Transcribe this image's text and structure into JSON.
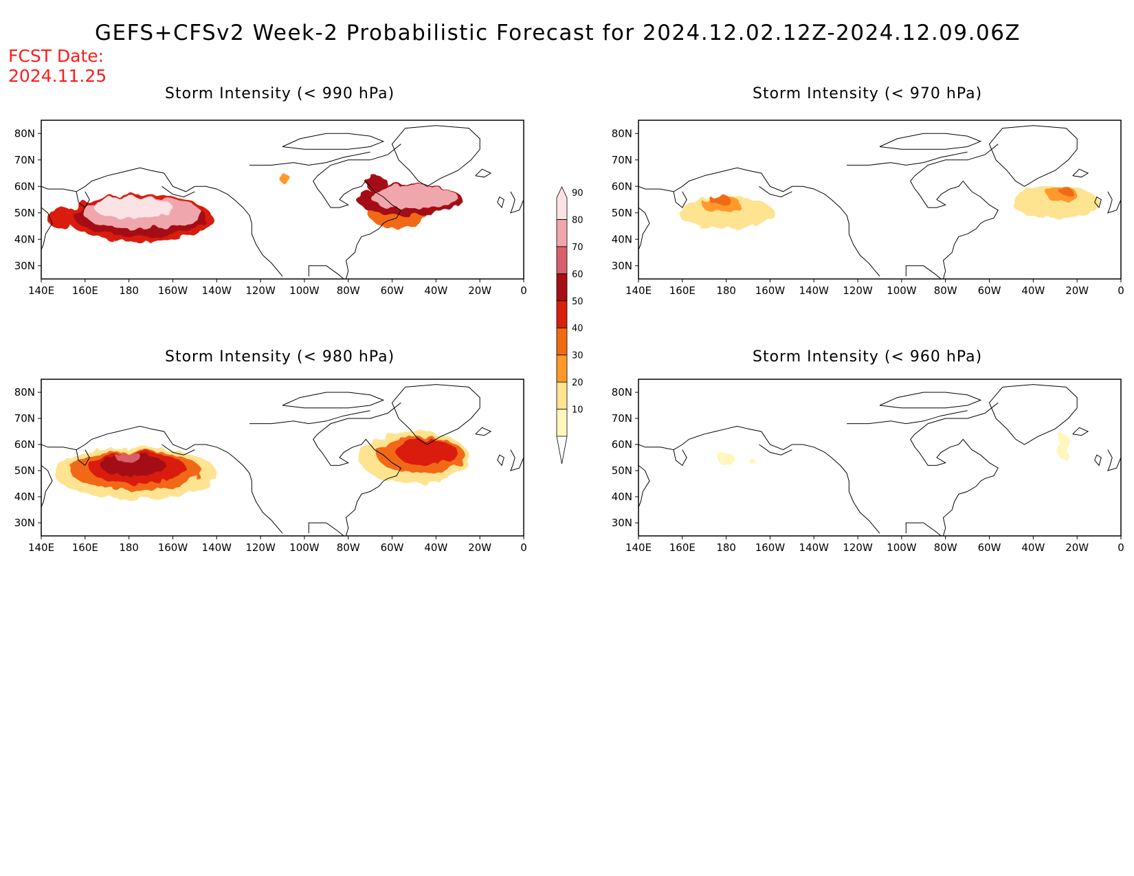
{
  "title": "GEFS+CFSv2 Week-2 Probabilistic Forecast for 2024.12.02.12Z-2024.12.09.06Z",
  "fcst_date": {
    "label": "FCST Date:",
    "value": "2024.11.25"
  },
  "lon_labels": [
    "140E",
    "160E",
    "180",
    "160W",
    "140W",
    "120W",
    "100W",
    "80W",
    "60W",
    "40W",
    "20W",
    "0"
  ],
  "lat_labels": [
    "80N",
    "70N",
    "60N",
    "50N",
    "40N",
    "30N"
  ],
  "colorbar": {
    "levels": [
      10,
      20,
      30,
      40,
      50,
      60,
      70,
      80,
      90
    ],
    "labels": [
      "10",
      "20",
      "30",
      "40",
      "50",
      "60",
      "70",
      "80",
      "90"
    ],
    "colors": [
      "#fff7bc",
      "#fee391",
      "#fe9929",
      "#f16913",
      "#d91e0a",
      "#a50f15",
      "#d8606b",
      "#f0a6ad",
      "#fbe2e5"
    ]
  },
  "panels": [
    {
      "id": "p990",
      "title": "Storm Intensity (< 990 hPa)",
      "blobs": [
        {
          "lon": 185,
          "lat": 48,
          "rlon": 33,
          "rlat": 9,
          "level": 4
        },
        {
          "lon": 185,
          "lat": 48.5,
          "rlon": 30,
          "rlat": 7.5,
          "level": 5
        },
        {
          "lon": 186,
          "lat": 50,
          "rlon": 27,
          "rlat": 6,
          "level": 7
        },
        {
          "lon": 182,
          "lat": 52,
          "rlon": 18,
          "rlat": 4,
          "level": 8
        },
        {
          "lon": 149,
          "lat": 48,
          "rlon": 6,
          "rlat": 4,
          "level": 4
        },
        {
          "lon": 302,
          "lat": 52,
          "rlon": 14,
          "rlat": 8,
          "level": 3
        },
        {
          "lon": 308,
          "lat": 55,
          "rlon": 24,
          "rlat": 6,
          "level": 5
        },
        {
          "lon": 310,
          "lat": 56,
          "rlon": 20,
          "rlat": 4.5,
          "level": 7
        },
        {
          "lon": 293,
          "lat": 61,
          "rlon": 5,
          "rlat": 3,
          "level": 5
        },
        {
          "lon": 251,
          "lat": 63,
          "rlon": 2,
          "rlat": 2,
          "level": 2
        }
      ]
    },
    {
      "id": "p970",
      "title": "Storm Intensity (< 970 hPa)",
      "blobs": [
        {
          "lon": 180,
          "lat": 50,
          "rlon": 22,
          "rlat": 6,
          "level": 1
        },
        {
          "lon": 178,
          "lat": 53,
          "rlon": 9,
          "rlat": 3,
          "level": 2
        },
        {
          "lon": 177,
          "lat": 55,
          "rlon": 5,
          "rlat": 1.8,
          "level": 3
        },
        {
          "lon": 330,
          "lat": 54,
          "rlon": 20,
          "rlat": 6,
          "level": 1
        },
        {
          "lon": 333,
          "lat": 57,
          "rlon": 7,
          "rlat": 3,
          "level": 2
        },
        {
          "lon": 335,
          "lat": 58,
          "rlon": 3,
          "rlat": 1.5,
          "level": 3
        }
      ]
    },
    {
      "id": "p980",
      "title": "Storm Intensity (< 980 hPa)",
      "blobs": [
        {
          "lon": 183,
          "lat": 49,
          "rlon": 37,
          "rlat": 10,
          "level": 1
        },
        {
          "lon": 183,
          "lat": 50,
          "rlon": 30,
          "rlat": 7.5,
          "level": 3
        },
        {
          "lon": 184,
          "lat": 51,
          "rlon": 22,
          "rlat": 6,
          "level": 4
        },
        {
          "lon": 182,
          "lat": 52,
          "rlon": 15,
          "rlat": 4,
          "level": 5
        },
        {
          "lon": 180,
          "lat": 55,
          "rlon": 6,
          "rlat": 2,
          "level": 6
        },
        {
          "lon": 310,
          "lat": 55,
          "rlon": 25,
          "rlat": 10,
          "level": 1
        },
        {
          "lon": 313,
          "lat": 56,
          "rlon": 20,
          "rlat": 7,
          "level": 3
        },
        {
          "lon": 316,
          "lat": 57,
          "rlon": 14,
          "rlat": 5,
          "level": 4
        }
      ]
    },
    {
      "id": "p960",
      "title": "Storm Intensity (< 960 hPa)",
      "blobs": [
        {
          "lon": 180,
          "lat": 54.5,
          "rlon": 4,
          "rlat": 2,
          "level": 0
        },
        {
          "lon": 192,
          "lat": 53.5,
          "rlon": 1.5,
          "rlat": 1,
          "level": 0
        },
        {
          "lon": 334,
          "lat": 59,
          "rlon": 3,
          "rlat": 5,
          "level": 0
        }
      ]
    }
  ]
}
